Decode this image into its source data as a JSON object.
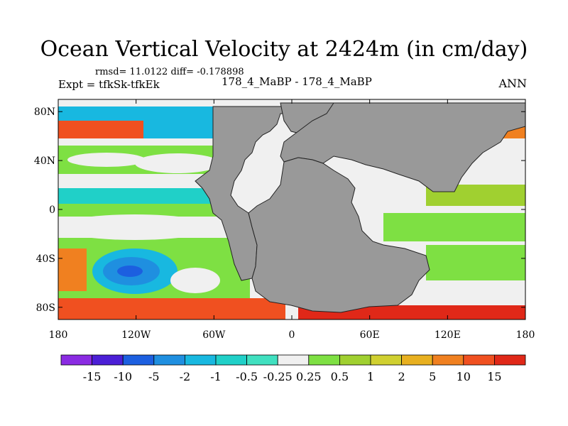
{
  "chart_data": {
    "type": "contour-map",
    "title": "Ocean Vertical Velocity at 2424m (in cm/day)",
    "stats_label": "rmsd= 11.0122 diff= -0.178898",
    "expt_label": "Expt = tfkSk-tfkEk",
    "cases_label": "178_4_MaBP - 178_4_MaBP",
    "season_label": "ANN",
    "x_ticks": [
      "180",
      "120W",
      "60W",
      "0",
      "60E",
      "120E",
      "180"
    ],
    "x_range": [
      -180,
      180
    ],
    "y_ticks": [
      "80N",
      "40N",
      "0",
      "40S",
      "80S"
    ],
    "y_range": [
      -90,
      90
    ],
    "colorbar": {
      "labels": [
        "-15",
        "-10",
        "-5",
        "-2",
        "-1",
        "-0.5",
        "-0.25",
        "0.25",
        "0.5",
        "1",
        "2",
        "5",
        "10",
        "15"
      ],
      "colors": [
        "#8a2be2",
        "#4b1fd6",
        "#1c5fe0",
        "#1f8fe0",
        "#18b8e0",
        "#20d0c8",
        "#40e0c0",
        "#f0f0f0",
        "#7ee043",
        "#a0d030",
        "#d0d030",
        "#e8b020",
        "#f08020",
        "#f05020",
        "#e02818"
      ]
    }
  }
}
